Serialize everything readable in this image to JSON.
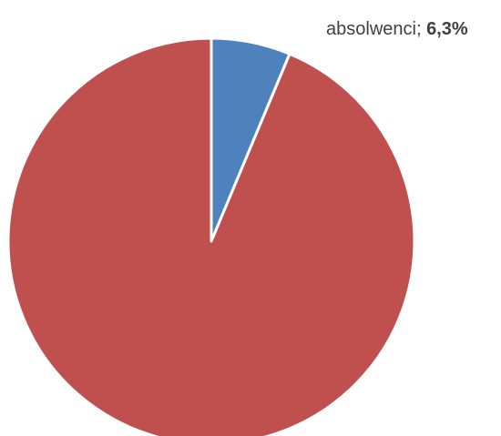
{
  "chart_data": {
    "type": "pie",
    "title": "",
    "slices": [
      {
        "name": "absolwenci",
        "value": 6.3,
        "value_text": "6,3%",
        "color": "#4F81BD",
        "label_visible": true
      },
      {
        "name": "",
        "value": 93.7,
        "value_text": "",
        "color": "#C0504D",
        "label_visible": false
      }
    ],
    "start_angle": "12 o'clock",
    "direction": "clockwise",
    "legend": "none",
    "slice_separator_color": "#FFFFFF"
  }
}
